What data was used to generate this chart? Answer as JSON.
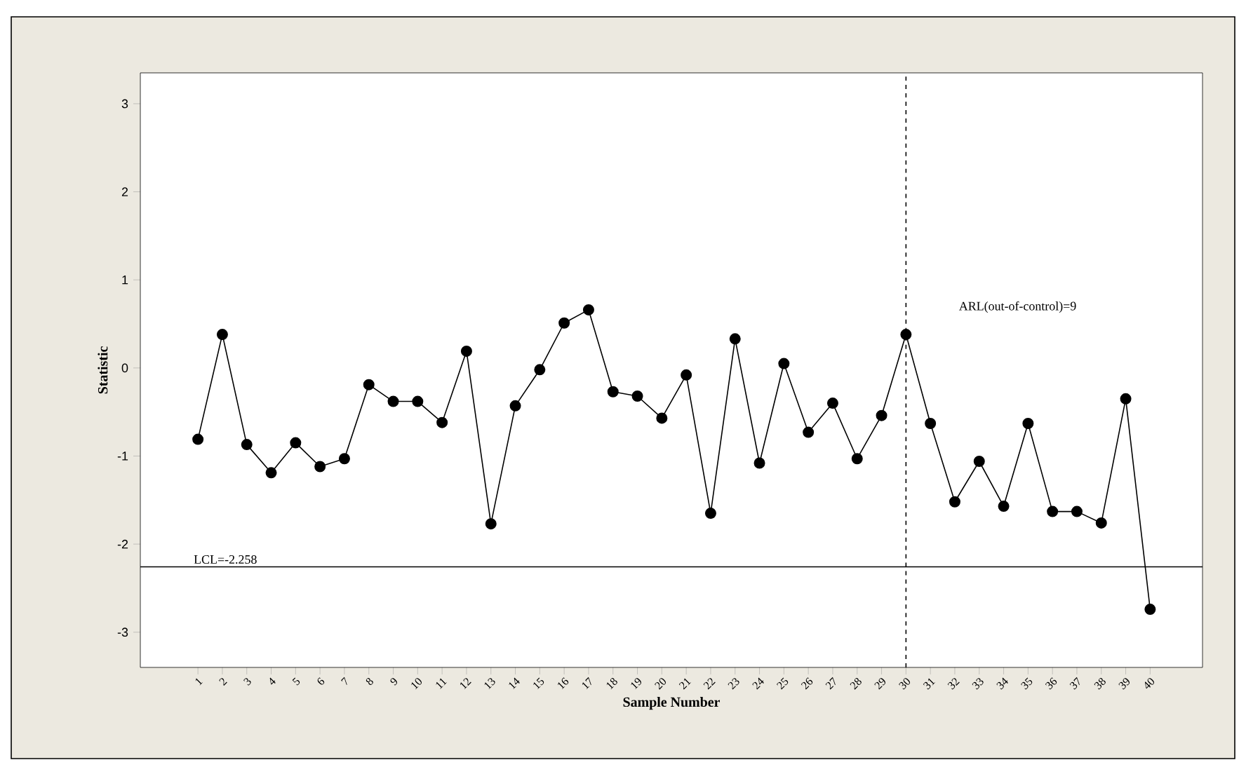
{
  "chart_data": {
    "type": "line",
    "xlabel": "Sample Number",
    "ylabel": "Statistic",
    "categories": [
      "1",
      "2",
      "3",
      "4",
      "5",
      "6",
      "7",
      "8",
      "9",
      "10",
      "11",
      "12",
      "13",
      "14",
      "15",
      "16",
      "17",
      "18",
      "19",
      "20",
      "21",
      "22",
      "23",
      "24",
      "25",
      "26",
      "27",
      "28",
      "29",
      "30",
      "31",
      "32",
      "33",
      "34",
      "35",
      "36",
      "37",
      "38",
      "39",
      "40"
    ],
    "series": [
      {
        "color": "#000000",
        "values": [
          -0.81,
          0.38,
          -0.87,
          -1.19,
          -0.85,
          -1.12,
          -1.03,
          -0.19,
          -0.38,
          -0.38,
          -0.62,
          0.19,
          -1.77,
          -0.43,
          -0.02,
          0.51,
          0.66,
          -0.27,
          -0.32,
          -0.57,
          -0.08,
          -1.65,
          0.33,
          -1.08,
          0.05,
          -0.73,
          -0.4,
          -1.03,
          -0.54,
          0.38,
          -0.63,
          -1.52,
          -1.06,
          -1.57,
          -0.63,
          -1.63,
          -1.63,
          -1.76,
          -0.35,
          -2.74
        ]
      }
    ],
    "ylim": [
      -3.4,
      3.35
    ],
    "yticks": [
      -3,
      -2,
      -1,
      0,
      1,
      2,
      3
    ],
    "ref_lines": [
      {
        "axis": "y",
        "value": -2.258,
        "label": "LCL=-2.258",
        "line_style": "solid",
        "color": "#000000"
      },
      {
        "axis": "x",
        "value": "30",
        "line_style": "dashed",
        "color": "#000000"
      }
    ],
    "annotations": [
      "ARL(out-of-control)=9"
    ],
    "marker": "circle",
    "line_style": "solid"
  }
}
